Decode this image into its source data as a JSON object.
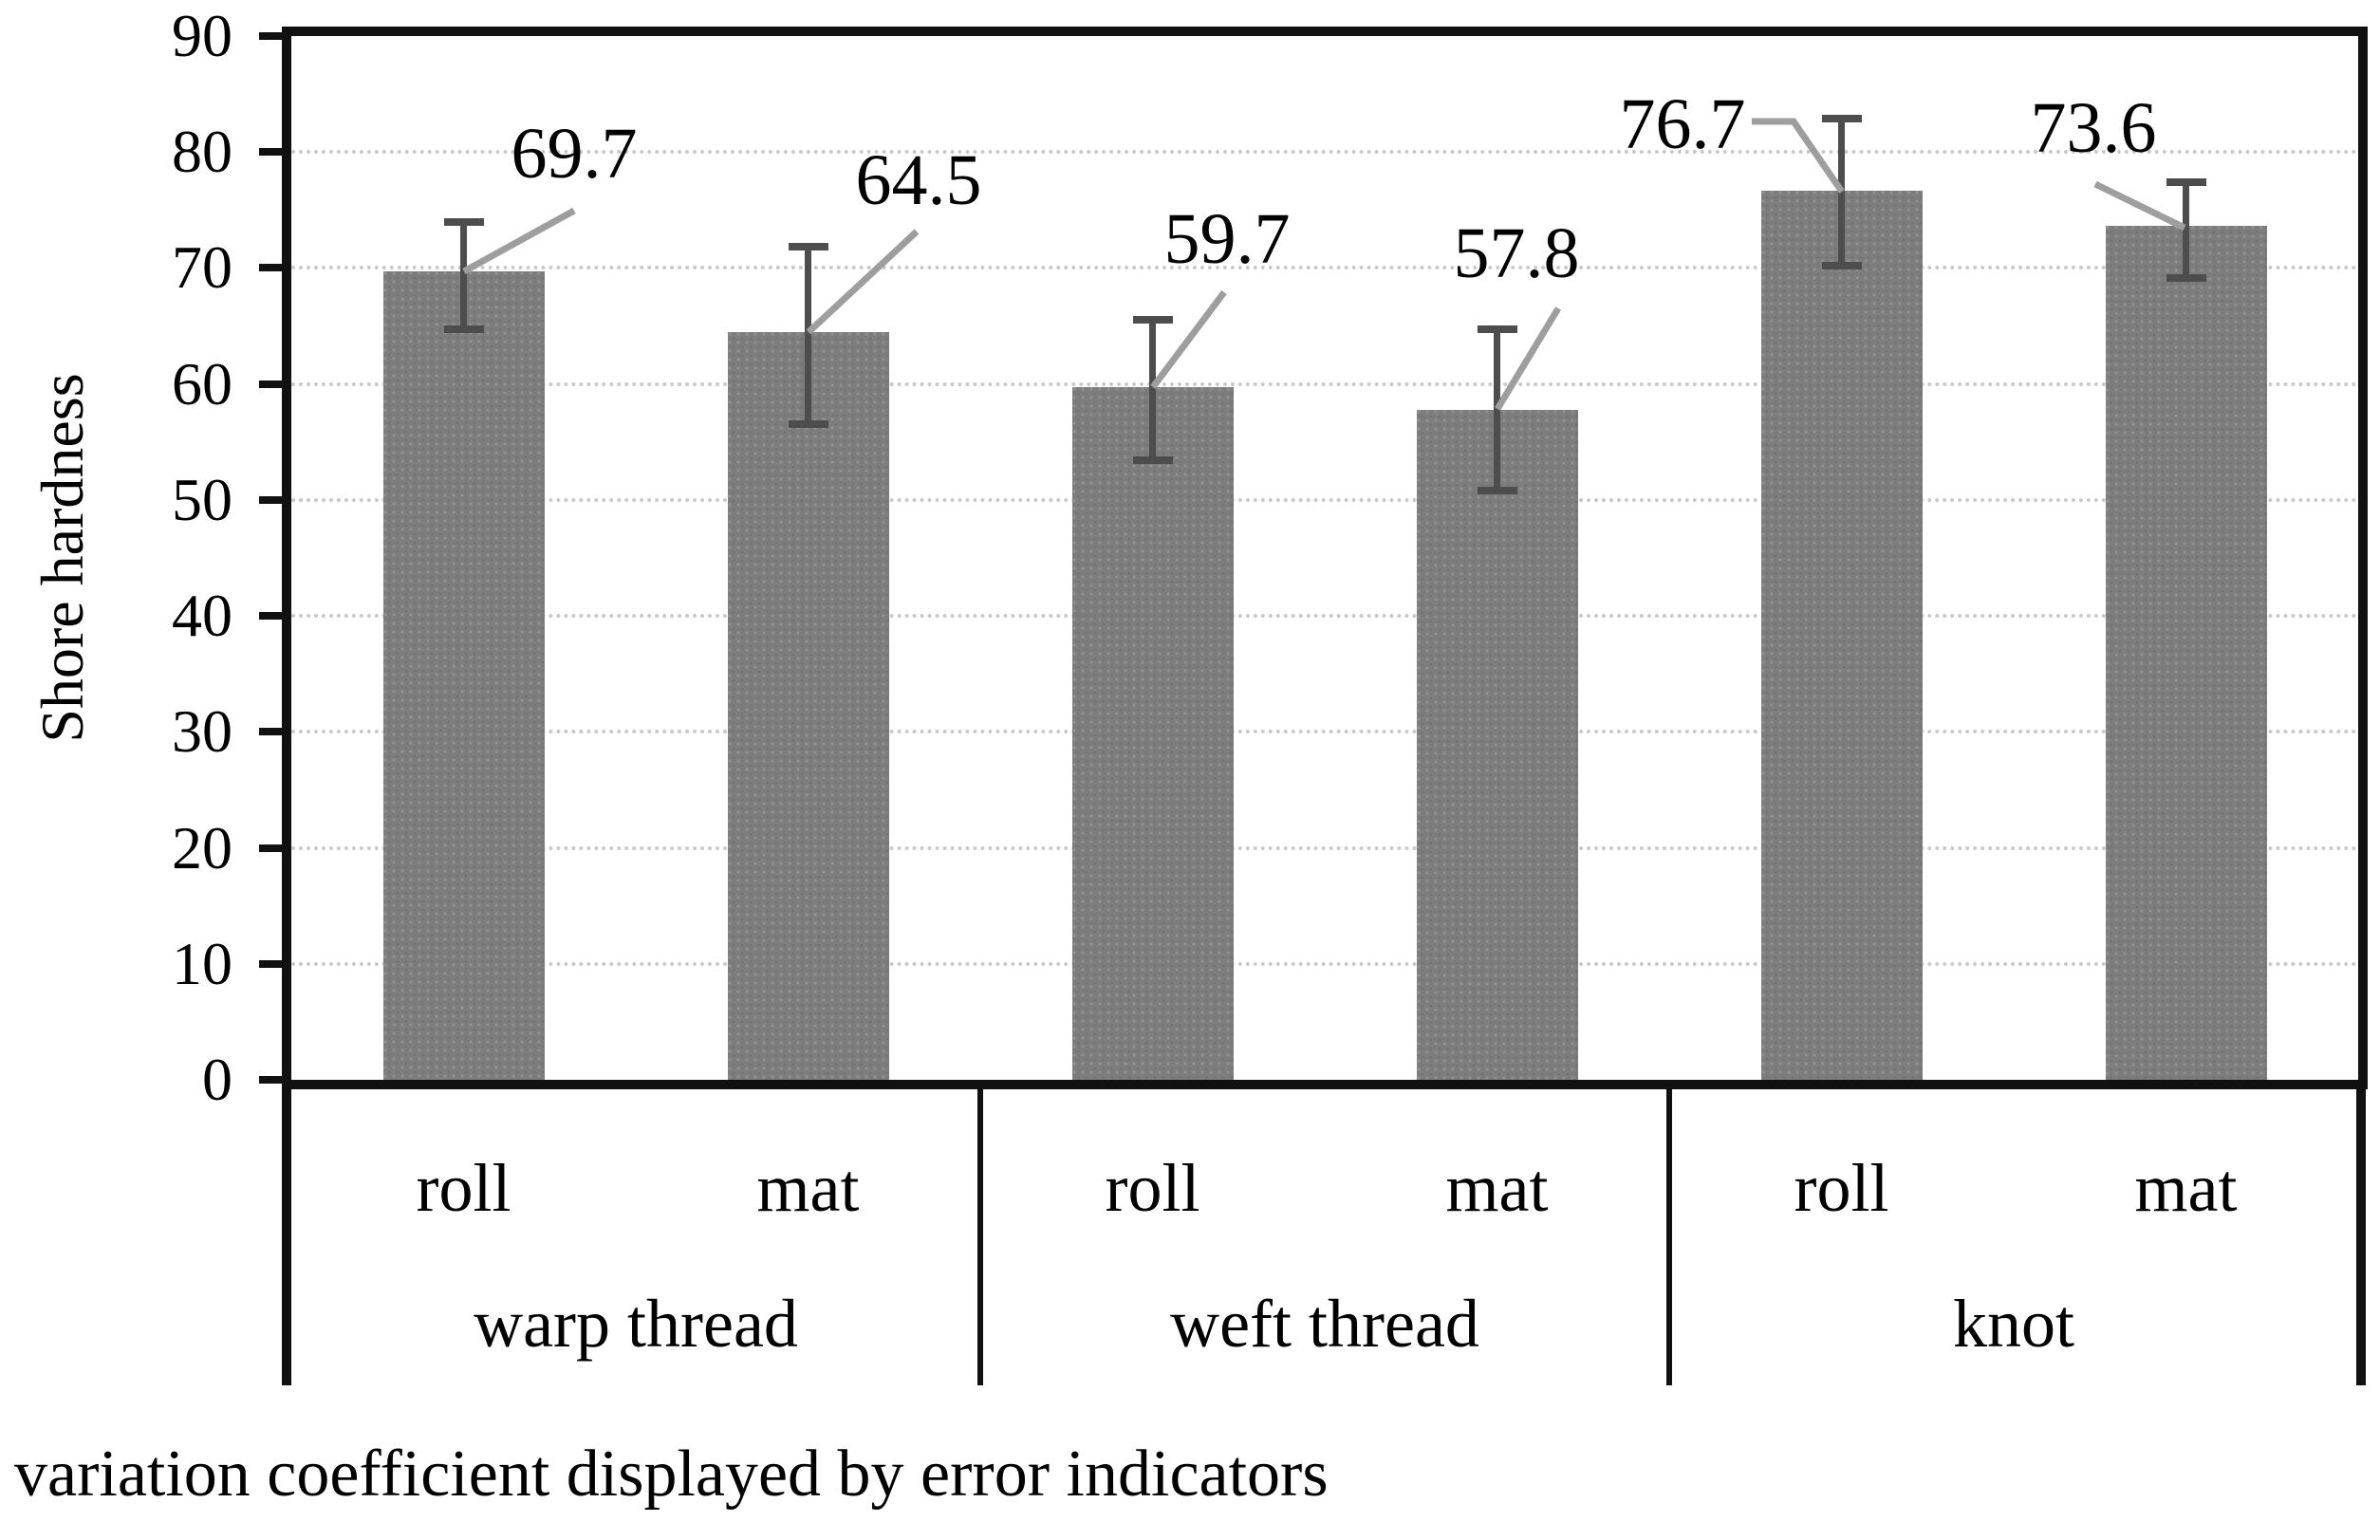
{
  "chart_data": {
    "type": "bar",
    "title": "",
    "xlabel": "",
    "ylabel": "Shore hardness",
    "caption": "variation coefficient displayed by error indicators",
    "ylim": [
      0,
      90
    ],
    "yticks": [
      0,
      10,
      20,
      30,
      40,
      50,
      60,
      70,
      80,
      90
    ],
    "grid": true,
    "legend_position": "none",
    "error_bars": "variation coefficient",
    "groups": [
      {
        "label": "warp thread",
        "categories": [
          "roll",
          "mat"
        ]
      },
      {
        "label": "weft thread",
        "categories": [
          "roll",
          "mat"
        ]
      },
      {
        "label": "knot",
        "categories": [
          "roll",
          "mat"
        ]
      }
    ],
    "categories": [
      "roll",
      "mat",
      "roll",
      "mat",
      "roll",
      "mat"
    ],
    "series": [
      {
        "name": "Shore hardness",
        "points": [
          {
            "group": "warp thread",
            "category": "roll",
            "value": 69.7,
            "label": "69.7",
            "err_up": 4.3,
            "err_down": 5.0
          },
          {
            "group": "warp thread",
            "category": "mat",
            "value": 64.5,
            "label": "64.5",
            "err_up": 7.3,
            "err_down": 8.0
          },
          {
            "group": "weft thread",
            "category": "roll",
            "value": 59.7,
            "label": "59.7",
            "err_up": 5.8,
            "err_down": 6.3
          },
          {
            "group": "weft thread",
            "category": "mat",
            "value": 57.8,
            "label": "57.8",
            "err_up": 6.9,
            "err_down": 7.0
          },
          {
            "group": "knot",
            "category": "roll",
            "value": 76.7,
            "label": "76.7",
            "err_up": 6.2,
            "err_down": 6.5
          },
          {
            "group": "knot",
            "category": "mat",
            "value": 73.6,
            "label": "73.6",
            "err_up": 3.8,
            "err_down": 4.5
          }
        ]
      }
    ],
    "colors": {
      "bar": "#7d7d7d",
      "error_bar": "#4d4d4d",
      "leader_line": "#9e9e9e",
      "gridline": "#c9c9c9",
      "axis": "#111111",
      "text": "#000000",
      "background": "#ffffff"
    }
  }
}
